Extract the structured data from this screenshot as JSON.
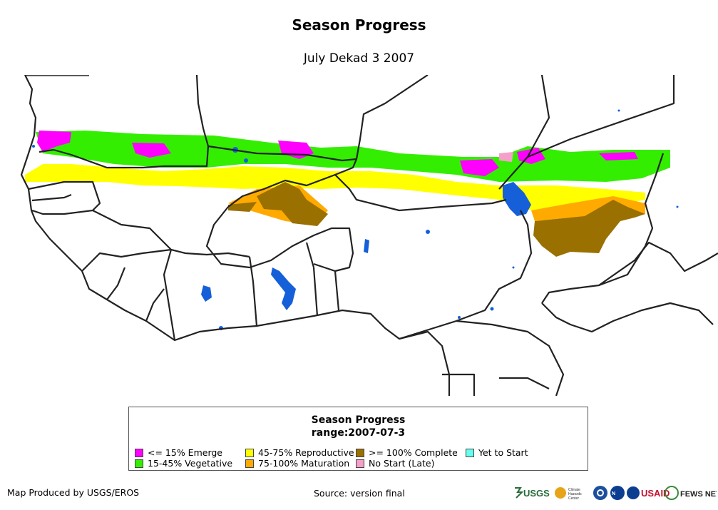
{
  "title": "Season Progress",
  "subtitle": "July Dekad 3 2007",
  "legend": {
    "title_line1": "Season Progress",
    "title_line2": "range:2007-07-3",
    "items": [
      {
        "label": "<= 15% Emerge",
        "color": "#ff00ff"
      },
      {
        "label": "15-45% Vegetative",
        "color": "#33ee00"
      },
      {
        "label": "45-75% Reproductive",
        "color": "#ffff00"
      },
      {
        "label": "75-100% Maturation",
        "color": "#ffaa00"
      },
      {
        "label": ">= 100% Complete",
        "color": "#9a7000"
      },
      {
        "label": "No Start (Late)",
        "color": "#f5a0c8"
      },
      {
        "label": "Yet to Start",
        "color": "#66ffee"
      }
    ]
  },
  "water_color": "#1560d8",
  "footer": {
    "produced_by": "Map Produced by USGS/EROS",
    "source": "Source: version final"
  },
  "logos": {
    "usgs": "USGS",
    "chc": "Climate Hazards Center",
    "usaid": "USAID",
    "fews": "FEWS NET"
  }
}
